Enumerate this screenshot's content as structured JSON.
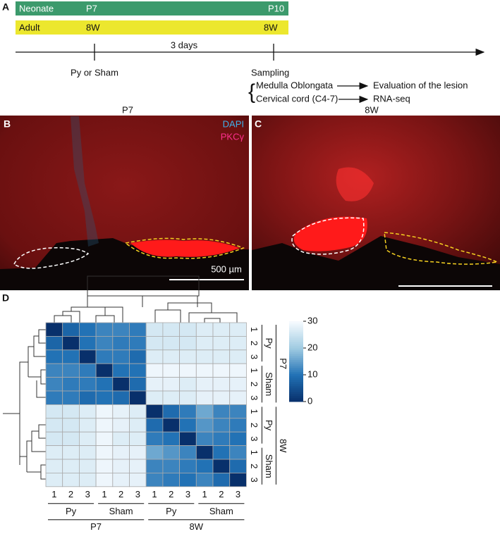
{
  "panel_a": {
    "label": "A",
    "rows": [
      {
        "name": "Neonate",
        "start": "P7",
        "end": "P10"
      },
      {
        "name": "Adult",
        "start": "8W",
        "end": "8W"
      }
    ],
    "interval": "3 days",
    "start_event": "Py or Sham",
    "end_event": "Sampling",
    "outcomes": [
      {
        "tissue": "Medulla Oblongata",
        "result": "Evaluation of the lesion"
      },
      {
        "tissue": "Cervical cord (C4-7)",
        "result": "RNA-seq"
      }
    ]
  },
  "panel_b": {
    "label": "B",
    "title": "P7",
    "stains": [
      "DAPI",
      "PKCγ"
    ],
    "scale_bar": "500 µm"
  },
  "panel_c": {
    "label": "C",
    "title": "8W"
  },
  "panel_d": {
    "label": "D",
    "type": "heatmap",
    "groups": [
      {
        "name": "P7",
        "subgroups": [
          {
            "name": "Py",
            "replicates": [
              "1",
              "2",
              "3"
            ]
          },
          {
            "name": "Sham",
            "replicates": [
              "1",
              "2",
              "3"
            ]
          }
        ]
      },
      {
        "name": "8W",
        "subgroups": [
          {
            "name": "Py",
            "replicates": [
              "1",
              "2",
              "3"
            ]
          },
          {
            "name": "Sham",
            "replicates": [
              "1",
              "2",
              "3"
            ]
          }
        ]
      }
    ],
    "matrix": [
      [
        0,
        8,
        10,
        12,
        12,
        11,
        26,
        26,
        26,
        27,
        27,
        27
      ],
      [
        8,
        0,
        10,
        12,
        11,
        11,
        26,
        26,
        26,
        27,
        27,
        27
      ],
      [
        10,
        10,
        0,
        11,
        11,
        9,
        27,
        27,
        27,
        27,
        27,
        27
      ],
      [
        12,
        12,
        11,
        0,
        10,
        10,
        29,
        29,
        29,
        29,
        29,
        29
      ],
      [
        12,
        11,
        11,
        10,
        0,
        9,
        28,
        28,
        27,
        28,
        28,
        28
      ],
      [
        11,
        11,
        9,
        10,
        9,
        0,
        27,
        27,
        27,
        28,
        28,
        28
      ],
      [
        26,
        26,
        27,
        29,
        28,
        27,
        0,
        9,
        11,
        16,
        12,
        12
      ],
      [
        26,
        26,
        27,
        29,
        28,
        27,
        9,
        0,
        10,
        14,
        12,
        11
      ],
      [
        26,
        26,
        27,
        29,
        27,
        27,
        11,
        10,
        0,
        12,
        11,
        10
      ],
      [
        27,
        27,
        27,
        29,
        28,
        28,
        16,
        14,
        12,
        0,
        10,
        12
      ],
      [
        27,
        27,
        27,
        29,
        28,
        28,
        12,
        12,
        11,
        10,
        0,
        9
      ],
      [
        27,
        27,
        27,
        29,
        28,
        28,
        12,
        11,
        10,
        12,
        9,
        0
      ]
    ],
    "clim": [
      0,
      30
    ],
    "colorbar_ticks": [
      0,
      10,
      20,
      30
    ]
  }
}
